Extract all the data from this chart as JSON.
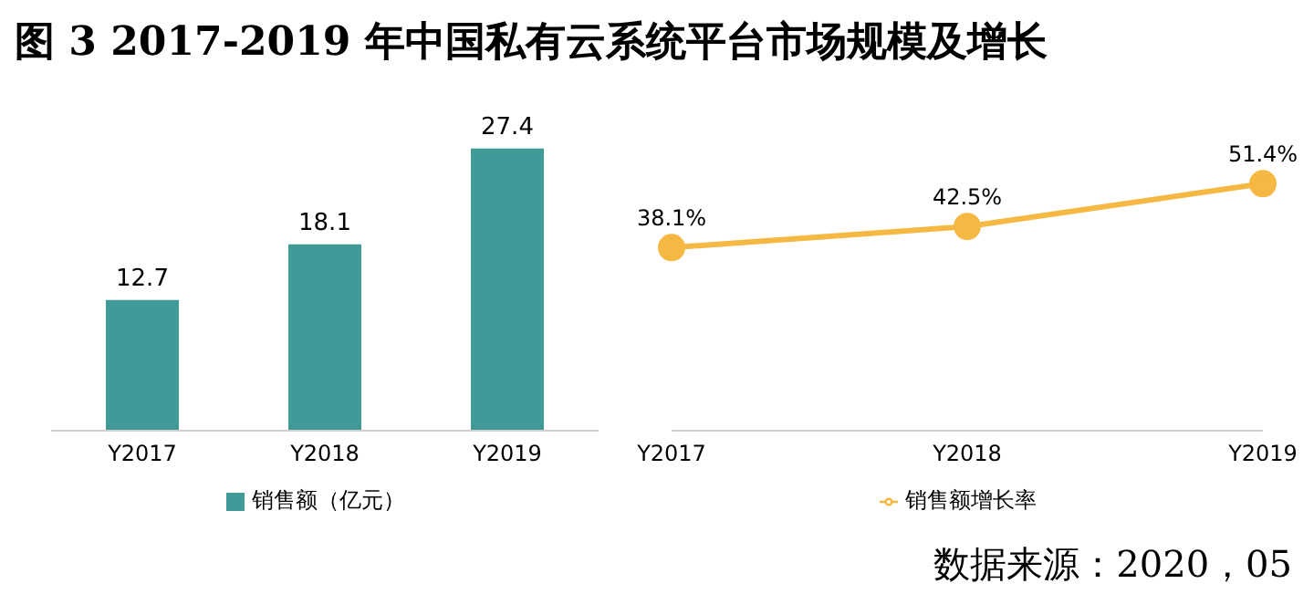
{
  "chart_data": [
    {
      "type": "bar",
      "title": "图 3  2017-2019 年中国私有云系统平台市场规模及增长",
      "categories": [
        "Y2017",
        "Y2018",
        "Y2019"
      ],
      "series": [
        {
          "name": "销售额（亿元）",
          "color": "#3f9a98",
          "values": [
            12.7,
            18.1,
            27.4
          ]
        }
      ],
      "data_labels": true,
      "legend": "bottom"
    },
    {
      "type": "line",
      "categories": [
        "Y2017",
        "Y2018",
        "Y2019"
      ],
      "series": [
        {
          "name": "销售额增长率",
          "color": "#f5b843",
          "values": [
            38.1,
            42.5,
            51.4
          ],
          "value_labels": [
            "38.1%",
            "42.5%",
            "51.4%"
          ]
        }
      ],
      "marker": "circle",
      "legend": "bottom",
      "annotations": [
        "数据来源：2020，05"
      ]
    }
  ]
}
